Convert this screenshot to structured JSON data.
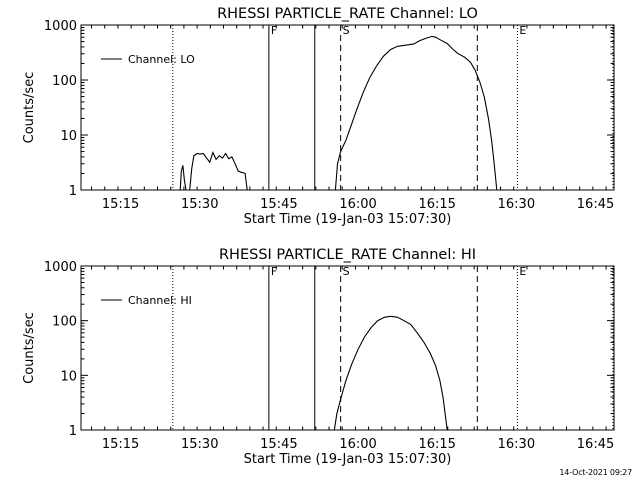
{
  "chart_data": [
    {
      "type": "line",
      "title": "RHESSI PARTICLE_RATE Channel: LO",
      "xlabel": "Start Time (19-Jan-03 15:07:30)",
      "ylabel": "Counts/sec",
      "x_unit": "minutes after 15:07:30",
      "xlim": [
        0,
        101
      ],
      "ylim": [
        1,
        1000
      ],
      "yscale": "log",
      "yticks": [
        "1",
        "10",
        "100",
        "1000"
      ],
      "xticks": [
        {
          "label": "15:15",
          "x": 7.5
        },
        {
          "label": "15:30",
          "x": 22.5
        },
        {
          "label": "15:45",
          "x": 37.5
        },
        {
          "label": "16:00",
          "x": 52.5
        },
        {
          "label": "16:15",
          "x": 67.5
        },
        {
          "label": "16:30",
          "x": 82.5
        },
        {
          "label": "16:45",
          "x": 97.5
        }
      ],
      "legend": {
        "label": "Channel: LO",
        "placement": "top-left"
      },
      "markers": [
        {
          "x": 17.4,
          "style": "dotted",
          "label": ""
        },
        {
          "x": 35.6,
          "style": "solid",
          "label": "F"
        },
        {
          "x": 44.3,
          "style": "solid",
          "label": ""
        },
        {
          "x": 49.2,
          "style": "dashed",
          "label": "S"
        },
        {
          "x": 75.1,
          "style": "dashed",
          "label": ""
        },
        {
          "x": 82.7,
          "style": "dotted",
          "label": "E"
        },
        {
          "x": 100.8,
          "style": "dotted",
          "label": ""
        }
      ],
      "series": [
        {
          "segments": [
            [
              [
                18.8,
                1
              ],
              [
                19.0,
                2.2
              ],
              [
                19.3,
                2.8
              ],
              [
                19.6,
                1.5
              ],
              [
                19.9,
                1
              ],
              [
                20.6,
                1
              ],
              [
                21.0,
                2.5
              ],
              [
                21.4,
                4.2
              ],
              [
                22.0,
                4.6
              ],
              [
                22.6,
                4.5
              ],
              [
                23.2,
                4.6
              ],
              [
                23.8,
                3.8
              ],
              [
                24.4,
                3.2
              ],
              [
                25.0,
                4.8
              ],
              [
                25.6,
                3.6
              ],
              [
                26.2,
                4.2
              ],
              [
                26.8,
                3.8
              ],
              [
                27.4,
                4.6
              ],
              [
                28.0,
                3.7
              ],
              [
                28.6,
                4.0
              ],
              [
                29.2,
                3.0
              ],
              [
                29.8,
                2.2
              ],
              [
                30.4,
                2.1
              ],
              [
                31.1,
                2.0
              ],
              [
                31.5,
                1
              ]
            ],
            [
              [
                48.2,
                1
              ],
              [
                48.6,
                3
              ],
              [
                49.2,
                5
              ],
              [
                50.2,
                8
              ],
              [
                51.2,
                15
              ],
              [
                52.3,
                30
              ],
              [
                53.5,
                60
              ],
              [
                54.7,
                110
              ],
              [
                56.0,
                180
              ],
              [
                57.3,
                270
              ],
              [
                58.7,
                360
              ],
              [
                60.0,
                410
              ],
              [
                61.5,
                430
              ],
              [
                63.0,
                450
              ],
              [
                64.2,
                520
              ],
              [
                65.5,
                580
              ],
              [
                66.5,
                620
              ],
              [
                67.2,
                600
              ],
              [
                68.2,
                530
              ],
              [
                69.4,
                460
              ],
              [
                70.5,
                360
              ],
              [
                71.5,
                300
              ],
              [
                72.7,
                260
              ],
              [
                73.8,
                210
              ],
              [
                74.7,
                150
              ],
              [
                75.6,
                90
              ],
              [
                76.4,
                50
              ],
              [
                77.2,
                20
              ],
              [
                77.8,
                8
              ],
              [
                78.3,
                3
              ],
              [
                78.8,
                1
              ]
            ]
          ]
        }
      ]
    },
    {
      "type": "line",
      "title": "RHESSI PARTICLE_RATE Channel: HI",
      "xlabel": "Start Time (19-Jan-03 15:07:30)",
      "ylabel": "Counts/sec",
      "x_unit": "minutes after 15:07:30",
      "xlim": [
        0,
        101
      ],
      "ylim": [
        1,
        1000
      ],
      "yscale": "log",
      "yticks": [
        "1",
        "10",
        "100",
        "1000"
      ],
      "xticks": [
        {
          "label": "15:15",
          "x": 7.5
        },
        {
          "label": "15:30",
          "x": 22.5
        },
        {
          "label": "15:45",
          "x": 37.5
        },
        {
          "label": "16:00",
          "x": 52.5
        },
        {
          "label": "16:15",
          "x": 67.5
        },
        {
          "label": "16:30",
          "x": 82.5
        },
        {
          "label": "16:45",
          "x": 97.5
        }
      ],
      "legend": {
        "label": "Channel: HI",
        "placement": "top-left"
      },
      "markers": [
        {
          "x": 17.4,
          "style": "dotted",
          "label": ""
        },
        {
          "x": 35.6,
          "style": "solid",
          "label": "F"
        },
        {
          "x": 44.3,
          "style": "solid",
          "label": ""
        },
        {
          "x": 49.2,
          "style": "dashed",
          "label": "S"
        },
        {
          "x": 75.1,
          "style": "dashed",
          "label": ""
        },
        {
          "x": 82.7,
          "style": "dotted",
          "label": "E"
        },
        {
          "x": 100.8,
          "style": "dotted",
          "label": ""
        }
      ],
      "series": [
        {
          "segments": [
            [
              [
                48.0,
                1
              ],
              [
                48.5,
                2
              ],
              [
                49.3,
                4
              ],
              [
                50.2,
                8
              ],
              [
                51.3,
                16
              ],
              [
                52.5,
                30
              ],
              [
                53.7,
                50
              ],
              [
                55.0,
                75
              ],
              [
                56.2,
                100
              ],
              [
                57.5,
                115
              ],
              [
                58.7,
                120
              ],
              [
                60.0,
                115
              ],
              [
                61.2,
                100
              ],
              [
                62.5,
                85
              ],
              [
                63.7,
                60
              ],
              [
                65.0,
                40
              ],
              [
                66.2,
                25
              ],
              [
                67.2,
                15
              ],
              [
                68.0,
                8
              ],
              [
                68.6,
                4
              ],
              [
                69.0,
                2
              ],
              [
                69.4,
                1
              ]
            ]
          ]
        }
      ]
    }
  ],
  "footer": {
    "timestamp": "14-Oct-2021 09:27"
  }
}
